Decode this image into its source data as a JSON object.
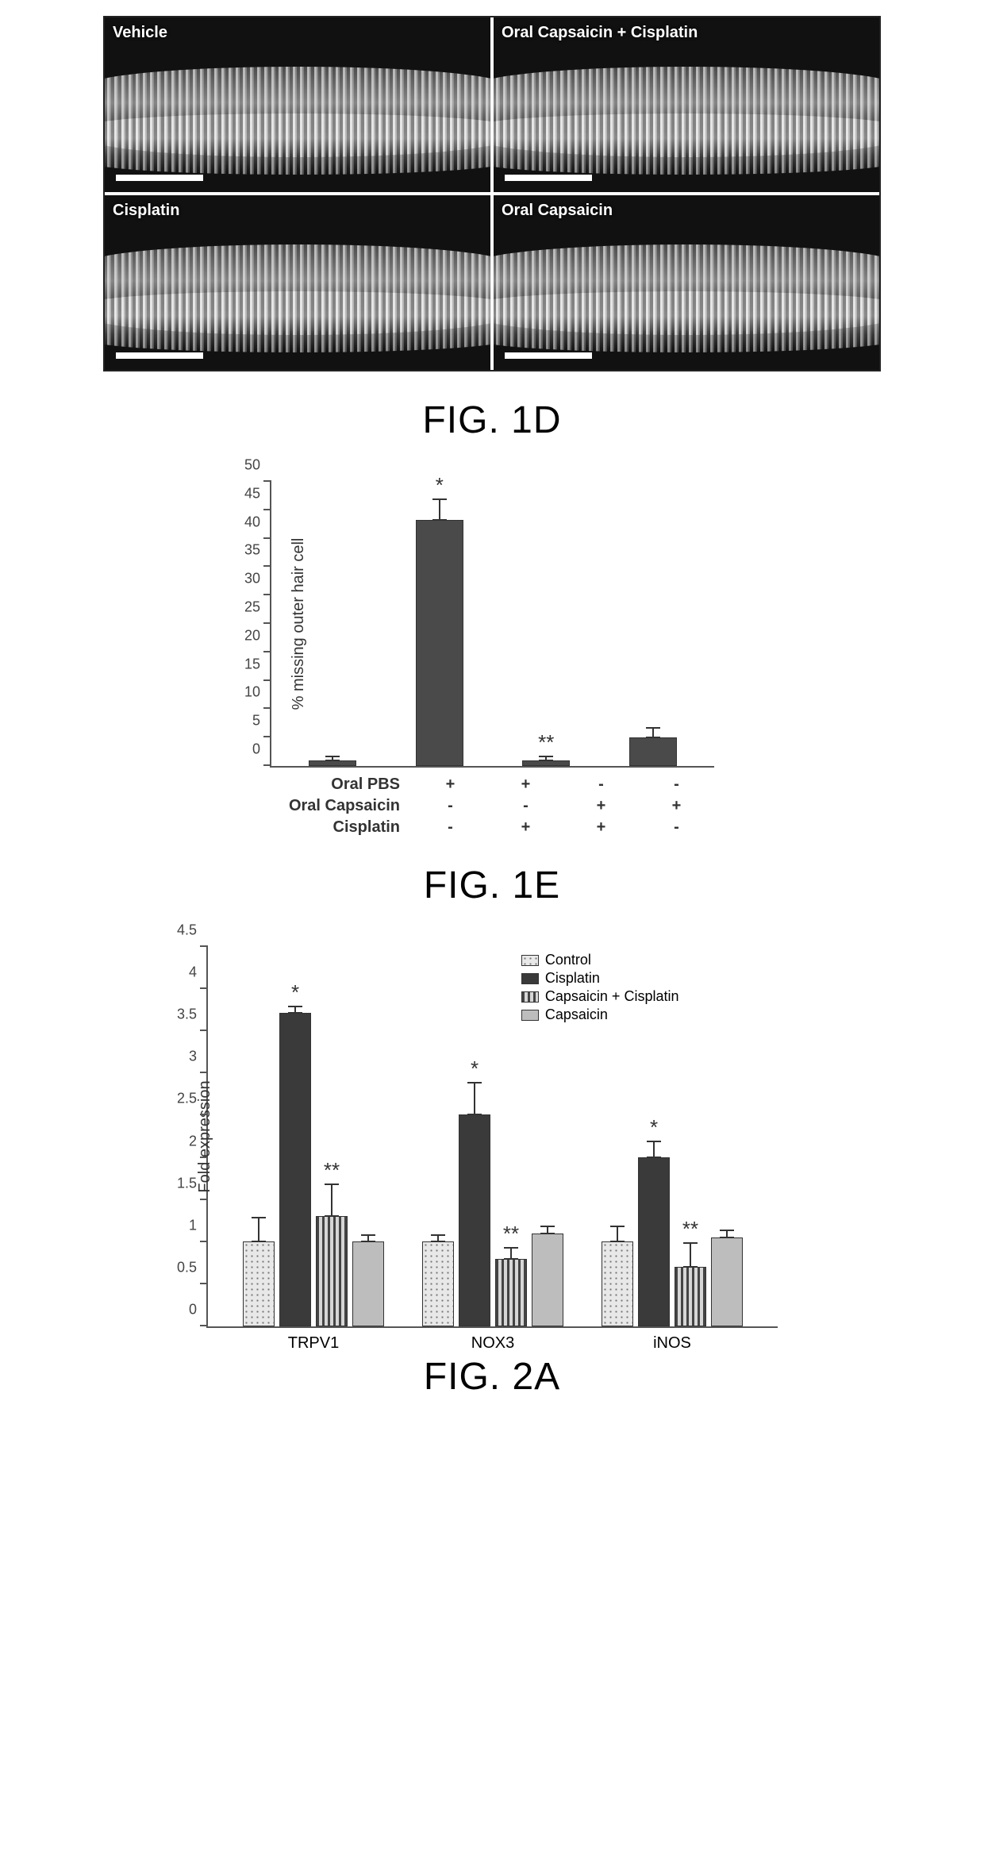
{
  "fig1d": {
    "caption": "FIG. 1D",
    "panels": [
      {
        "label": "Vehicle"
      },
      {
        "label": "Oral Capsaicin + Cisplatin"
      },
      {
        "label": "Cisplatin"
      },
      {
        "label": "Oral Capsaicin"
      }
    ]
  },
  "fig1e": {
    "caption": "FIG. 1E",
    "type": "bar",
    "y_label": "% missing outer hair cell",
    "ylim": [
      0,
      50
    ],
    "ytick_step": 5,
    "label_fontsize": 20,
    "tick_fontsize": 18,
    "bar_color": "#4a4a4a",
    "error_color": "#333333",
    "background_color": "#ffffff",
    "bars": [
      {
        "value": 1,
        "err": 1,
        "sig": ""
      },
      {
        "value": 43,
        "err": 4,
        "sig": "*"
      },
      {
        "value": 1,
        "err": 1,
        "sig": "**"
      },
      {
        "value": 5,
        "err": 2,
        "sig": ""
      }
    ],
    "treatment_rows": [
      {
        "label": "Oral PBS",
        "signs": [
          "+",
          "+",
          "-",
          "-"
        ]
      },
      {
        "label": "Oral Capsaicin",
        "signs": [
          "-",
          "-",
          "+",
          "+"
        ]
      },
      {
        "label": "Cisplatin",
        "signs": [
          "-",
          "+",
          "+",
          "-"
        ]
      }
    ]
  },
  "fig2a": {
    "caption": "FIG. 2A",
    "type": "grouped-bar",
    "y_label": "Fold expression",
    "ylim": [
      0,
      4.5
    ],
    "ytick_step": 0.5,
    "label_fontsize": 20,
    "tick_fontsize": 18,
    "background_color": "#ffffff",
    "legend": [
      {
        "key": "control",
        "label": "Control",
        "fill_class": "fill-control",
        "color": "#e8e8e8"
      },
      {
        "key": "cisplatin",
        "label": "Cisplatin",
        "fill_class": "fill-cisplatin",
        "color": "#3a3a3a"
      },
      {
        "key": "capcis",
        "label": "Capsaicin + Cisplatin",
        "fill_class": "fill-capcis",
        "color": "#d6d6d6"
      },
      {
        "key": "capsaicin",
        "label": "Capsaicin",
        "fill_class": "fill-capsaicin",
        "color": "#bdbdbd"
      }
    ],
    "groups": [
      {
        "name": "TRPV1",
        "bars": [
          {
            "series": "control",
            "value": 1.0,
            "err": 0.3,
            "sig": ""
          },
          {
            "series": "cisplatin",
            "value": 3.7,
            "err": 0.1,
            "sig": "*"
          },
          {
            "series": "capcis",
            "value": 1.3,
            "err": 0.4,
            "sig": "**"
          },
          {
            "series": "capsaicin",
            "value": 1.0,
            "err": 0.1,
            "sig": ""
          }
        ]
      },
      {
        "name": "NOX3",
        "bars": [
          {
            "series": "control",
            "value": 1.0,
            "err": 0.1,
            "sig": ""
          },
          {
            "series": "cisplatin",
            "value": 2.5,
            "err": 0.4,
            "sig": "*"
          },
          {
            "series": "capcis",
            "value": 0.8,
            "err": 0.15,
            "sig": "**"
          },
          {
            "series": "capsaicin",
            "value": 1.1,
            "err": 0.1,
            "sig": ""
          }
        ]
      },
      {
        "name": "iNOS",
        "bars": [
          {
            "series": "control",
            "value": 1.0,
            "err": 0.2,
            "sig": ""
          },
          {
            "series": "cisplatin",
            "value": 2.0,
            "err": 0.2,
            "sig": "*"
          },
          {
            "series": "capcis",
            "value": 0.7,
            "err": 0.3,
            "sig": "**"
          },
          {
            "series": "capsaicin",
            "value": 1.05,
            "err": 0.1,
            "sig": ""
          }
        ]
      }
    ]
  }
}
